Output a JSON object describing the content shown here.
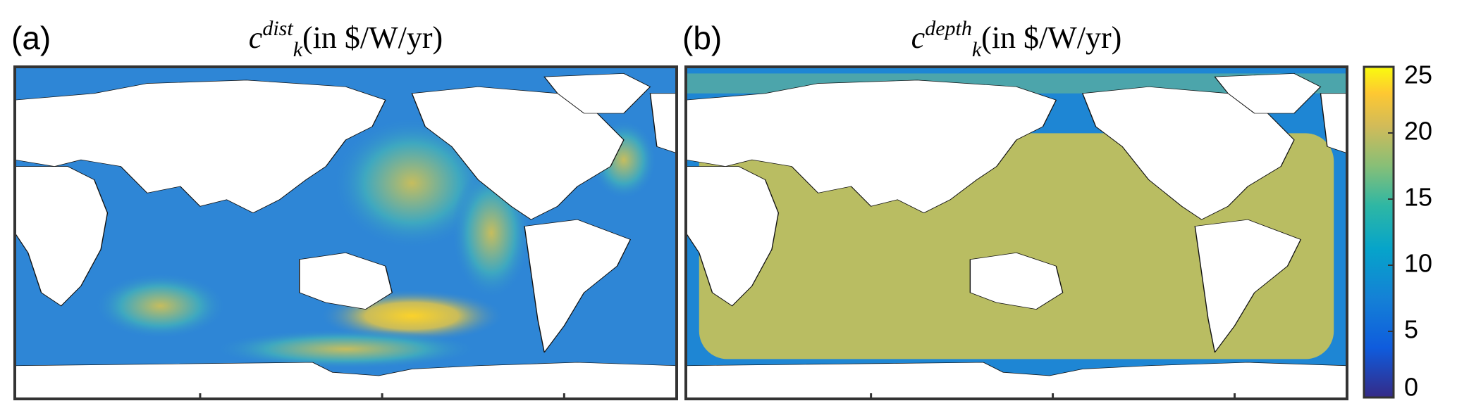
{
  "panels": [
    {
      "label": "(a)",
      "title": {
        "symbol": "c",
        "subscript": "k",
        "superscript": "dist",
        "unit": "(in $/W/yr)"
      }
    },
    {
      "label": "(b)",
      "title": {
        "symbol": "c",
        "subscript": "k",
        "superscript": "depth",
        "unit": "(in $/W/yr)"
      }
    }
  ],
  "colorbar": {
    "lim": [
      0,
      25
    ],
    "ticks": [
      0,
      5,
      10,
      15,
      20,
      25
    ]
  }
}
